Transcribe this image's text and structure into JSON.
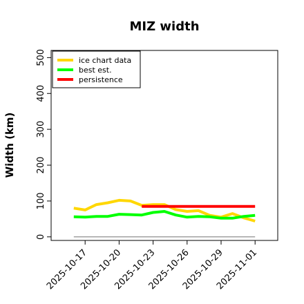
{
  "chart_data": {
    "type": "line",
    "title": "MIZ width",
    "xlabel": "",
    "ylabel": "Width (km)",
    "x_tick_labels": [
      "2025-10-17",
      "2025-10-20",
      "2025-10-23",
      "2025-10-26",
      "2025-10-29",
      "2025-11-01"
    ],
    "x_tick_dates": [
      "2025-10-17",
      "2025-10-20",
      "2025-10-23",
      "2025-10-26",
      "2025-10-29",
      "2025-11-01"
    ],
    "xlim": [
      "2025-10-14",
      "2025-11-03"
    ],
    "y_ticks": [
      0,
      100,
      200,
      300,
      400,
      500
    ],
    "y_tick_labels": [
      "0",
      "100",
      "200",
      "300",
      "400",
      "500"
    ],
    "ylim": [
      -10,
      520
    ],
    "grid": false,
    "legend_position": "top-left",
    "series": [
      {
        "name": "ice chart data",
        "color": "#FFD700",
        "points": [
          {
            "x": "2025-10-16",
            "y": 80
          },
          {
            "x": "2025-10-17",
            "y": 75
          },
          {
            "x": "2025-10-18",
            "y": 90
          },
          {
            "x": "2025-10-19",
            "y": 95
          },
          {
            "x": "2025-10-20",
            "y": 102
          },
          {
            "x": "2025-10-21",
            "y": 100
          },
          {
            "x": "2025-10-22",
            "y": 88
          },
          {
            "x": "2025-10-23",
            "y": 90
          },
          {
            "x": "2025-10-24",
            "y": 90
          },
          {
            "x": "2025-10-25",
            "y": 76
          },
          {
            "x": "2025-10-26",
            "y": 71
          },
          {
            "x": "2025-10-27",
            "y": 73
          },
          {
            "x": "2025-10-28",
            "y": 60
          },
          {
            "x": "2025-10-29",
            "y": 55
          },
          {
            "x": "2025-10-30",
            "y": 65
          },
          {
            "x": "2025-10-31",
            "y": 53
          },
          {
            "x": "2025-11-01",
            "y": 44
          }
        ]
      },
      {
        "name": "best est.",
        "color": "#00FF00",
        "points": [
          {
            "x": "2025-10-16",
            "y": 56
          },
          {
            "x": "2025-10-17",
            "y": 55
          },
          {
            "x": "2025-10-18",
            "y": 57
          },
          {
            "x": "2025-10-19",
            "y": 57
          },
          {
            "x": "2025-10-20",
            "y": 63
          },
          {
            "x": "2025-10-21",
            "y": 62
          },
          {
            "x": "2025-10-22",
            "y": 61
          },
          {
            "x": "2025-10-23",
            "y": 68
          },
          {
            "x": "2025-10-24",
            "y": 71
          },
          {
            "x": "2025-10-25",
            "y": 61
          },
          {
            "x": "2025-10-26",
            "y": 55
          },
          {
            "x": "2025-10-27",
            "y": 57
          },
          {
            "x": "2025-10-28",
            "y": 56
          },
          {
            "x": "2025-10-29",
            "y": 52
          },
          {
            "x": "2025-10-30",
            "y": 52
          },
          {
            "x": "2025-10-31",
            "y": 57
          },
          {
            "x": "2025-11-01",
            "y": 60
          }
        ]
      },
      {
        "name": "persistence",
        "color": "#FF0000",
        "points": [
          {
            "x": "2025-10-22",
            "y": 85
          },
          {
            "x": "2025-11-01",
            "y": 85
          }
        ]
      }
    ],
    "reference_line": {
      "color": "#808080",
      "points": [
        {
          "x": "2025-10-16",
          "y": 0
        },
        {
          "x": "2025-11-01",
          "y": 0
        }
      ]
    }
  }
}
